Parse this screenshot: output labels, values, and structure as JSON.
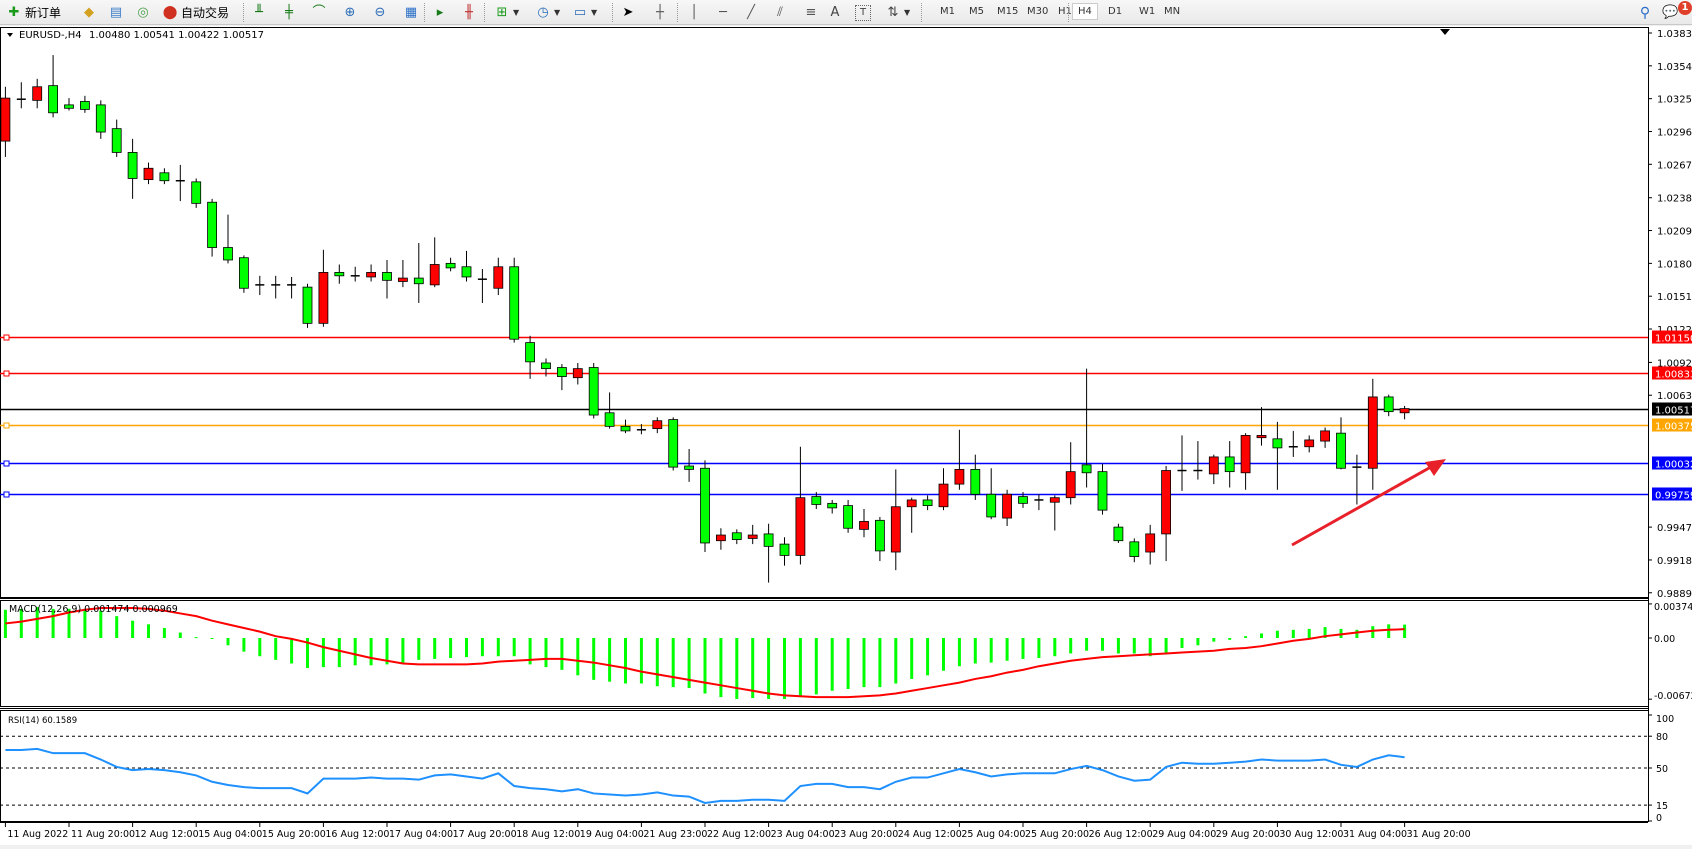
{
  "toolbar": {
    "new_order_label": "新订单",
    "auto_trading_label": "自动交易",
    "timeframes": [
      "M1",
      "M5",
      "M15",
      "M30",
      "H1",
      "H4",
      "D1",
      "W1",
      "MN"
    ],
    "active_timeframe": "H4",
    "notification_count": "1",
    "icons": [
      "new-order-icon",
      "market-watch-icon",
      "navigator-icon",
      "signals-icon",
      "auto-trading-icon",
      "bar-chart-icon",
      "candlestick-icon",
      "line-chart-icon",
      "zoom-in-icon",
      "zoom-out-icon",
      "tile-windows-icon",
      "chart-shift-icon",
      "autoscroll-icon",
      "new-chart-icon",
      "periods-icon",
      "templates-icon",
      "cursor-icon",
      "crosshair-icon",
      "vertical-line-icon",
      "horizontal-line-icon",
      "trendline-icon",
      "equidistant-channel-icon",
      "fibonacci-icon",
      "text-icon",
      "text-label-icon",
      "arrows-icon",
      "search-icon",
      "chat-icon"
    ]
  },
  "chart": {
    "symbol_label": "EURUSD-,H4",
    "ohlc_label": "1.00480 1.00541 1.00422 1.00517",
    "macd_label": "MACD(12,26,9) 0.001474 0.000969",
    "rsi_label": "RSI(14) 60.1589"
  },
  "chart_data": {
    "type": "candlestick",
    "symbol": "EURUSD-",
    "timeframe": "H4",
    "bull_color": "#ff0000",
    "bear_color": "#00ff00",
    "ylim": [
      0.9886,
      1.039
    ],
    "price_ticks": [
      "1.03835",
      "1.03545",
      "1.03255",
      "1.02965",
      "1.02675",
      "1.02380",
      "1.02090",
      "1.01800",
      "1.01510",
      "1.01220",
      "1.00925",
      "1.00635",
      "0.99470",
      "0.99180",
      "0.98890"
    ],
    "levels": [
      {
        "price": "1.01150",
        "color": "#ff0000",
        "text_color": "#ffffff"
      },
      {
        "price": "1.00833",
        "color": "#ff0000",
        "text_color": "#ffffff"
      },
      {
        "price": "1.00517",
        "color": "#000000",
        "text_color": "#ffffff"
      },
      {
        "price": "1.00375",
        "color": "#ffa500",
        "text_color": "#ffffff"
      },
      {
        "price": "1.00032",
        "color": "#0000ff",
        "text_color": "#ffffff"
      },
      {
        "price": "0.99759",
        "color": "#0000ff",
        "text_color": "#ffffff"
      }
    ],
    "time_labels": [
      "11 Aug 2022",
      "11 Aug 20:00",
      "12 Aug 12:00",
      "15 Aug 04:00",
      "15 Aug 20:00",
      "16 Aug 12:00",
      "17 Aug 04:00",
      "17 Aug 20:00",
      "18 Aug 12:00",
      "19 Aug 04:00",
      "21 Aug 23:00",
      "22 Aug 12:00",
      "23 Aug 04:00",
      "23 Aug 20:00",
      "24 Aug 12:00",
      "25 Aug 04:00",
      "25 Aug 20:00",
      "26 Aug 12:00",
      "29 Aug 04:00",
      "29 Aug 20:00",
      "30 Aug 12:00",
      "31 Aug 04:00",
      "31 Aug 20:00"
    ],
    "candles_ohlc": [
      [
        1.0288,
        1.0336,
        1.0274,
        1.0326
      ],
      [
        1.0325,
        1.034,
        1.0317,
        1.0324
      ],
      [
        1.0324,
        1.0343,
        1.0317,
        1.0336
      ],
      [
        1.0337,
        1.0364,
        1.0309,
        1.0313
      ],
      [
        1.032,
        1.0326,
        1.0315,
        1.0317
      ],
      [
        1.0323,
        1.0328,
        1.0313,
        1.0316
      ],
      [
        1.032,
        1.0324,
        1.029,
        1.0296
      ],
      [
        1.0299,
        1.0307,
        1.0274,
        1.0278
      ],
      [
        1.0278,
        1.029,
        1.0237,
        1.0255
      ],
      [
        1.0254,
        1.0269,
        1.025,
        1.0264
      ],
      [
        1.026,
        1.0264,
        1.025,
        1.0253
      ],
      [
        1.0253,
        1.0267,
        1.0235,
        1.0252
      ],
      [
        1.0252,
        1.0255,
        1.0229,
        1.0233
      ],
      [
        1.0234,
        1.0237,
        1.0186,
        1.0194
      ],
      [
        1.0194,
        1.0223,
        1.018,
        1.0183
      ],
      [
        1.0185,
        1.0187,
        1.0154,
        1.0158
      ],
      [
        1.0161,
        1.0169,
        1.0152,
        1.016
      ],
      [
        1.016,
        1.0169,
        1.0149,
        1.0161
      ],
      [
        1.0161,
        1.0168,
        1.0149,
        1.016
      ],
      [
        1.0159,
        1.0162,
        1.0123,
        1.0127
      ],
      [
        1.0127,
        1.0192,
        1.0124,
        1.0172
      ],
      [
        1.0172,
        1.0179,
        1.0162,
        1.0169
      ],
      [
        1.0169,
        1.0177,
        1.0164,
        1.0169
      ],
      [
        1.0168,
        1.0179,
        1.0164,
        1.0172
      ],
      [
        1.0172,
        1.0183,
        1.0149,
        1.0165
      ],
      [
        1.0164,
        1.0183,
        1.0159,
        1.0167
      ],
      [
        1.0167,
        1.0198,
        1.0145,
        1.0162
      ],
      [
        1.0161,
        1.0203,
        1.0159,
        1.0179
      ],
      [
        1.018,
        1.0185,
        1.0173,
        1.0176
      ],
      [
        1.0177,
        1.0191,
        1.0164,
        1.0168
      ],
      [
        1.0166,
        1.0175,
        1.0145,
        1.0166
      ],
      [
        1.0158,
        1.0185,
        1.0152,
        1.0177
      ],
      [
        1.0177,
        1.0185,
        1.011,
        1.0113
      ],
      [
        1.011,
        1.0116,
        1.0078,
        1.0093
      ],
      [
        1.0092,
        1.0096,
        1.008,
        1.0087
      ],
      [
        1.0088,
        1.0091,
        1.0068,
        1.008
      ],
      [
        1.0079,
        1.0092,
        1.0073,
        1.0087
      ],
      [
        1.0088,
        1.0092,
        1.0043,
        1.0046
      ],
      [
        1.0048,
        1.0066,
        1.0034,
        1.0036
      ],
      [
        1.0036,
        1.0042,
        1.003,
        1.0032
      ],
      [
        1.0033,
        1.0038,
        1.0029,
        1.0033
      ],
      [
        1.0034,
        1.0044,
        1.003,
        1.0041
      ],
      [
        1.0042,
        1.0044,
        0.9997,
        1.0
      ],
      [
        1.0001,
        1.0016,
        0.9987,
        0.9998
      ],
      [
        0.9999,
        1.0006,
        0.9925,
        0.9933
      ],
      [
        0.9935,
        0.9946,
        0.9927,
        0.994
      ],
      [
        0.9942,
        0.9945,
        0.9932,
        0.9936
      ],
      [
        0.9937,
        0.9949,
        0.9932,
        0.994
      ],
      [
        0.9941,
        0.995,
        0.9898,
        0.993
      ],
      [
        0.9932,
        0.9938,
        0.9913,
        0.9922
      ],
      [
        0.9922,
        1.0018,
        0.9914,
        0.9973
      ],
      [
        0.9974,
        0.9978,
        0.9963,
        0.9967
      ],
      [
        0.9968,
        0.9971,
        0.9959,
        0.9964
      ],
      [
        0.9966,
        0.9971,
        0.9942,
        0.9946
      ],
      [
        0.9945,
        0.9963,
        0.9938,
        0.9952
      ],
      [
        0.9953,
        0.9956,
        0.9917,
        0.9926
      ],
      [
        0.9925,
        0.9998,
        0.9909,
        0.9965
      ],
      [
        0.9965,
        0.9973,
        0.9942,
        0.9971
      ],
      [
        0.9971,
        0.9975,
        0.9962,
        0.9966
      ],
      [
        0.9965,
        0.9999,
        0.9962,
        0.9985
      ],
      [
        0.9985,
        1.0033,
        0.998,
        0.9998
      ],
      [
        0.9998,
        1.0011,
        0.9971,
        0.9976
      ],
      [
        0.9976,
        0.9999,
        0.9954,
        0.9956
      ],
      [
        0.9955,
        0.998,
        0.9948,
        0.9976
      ],
      [
        0.9974,
        0.9978,
        0.9964,
        0.9968
      ],
      [
        0.9971,
        0.9976,
        0.9962,
        0.997
      ],
      [
        0.9969,
        0.9975,
        0.9944,
        0.9973
      ],
      [
        0.9973,
        1.0022,
        0.9967,
        0.9996
      ],
      [
        1.0002,
        1.0087,
        0.9982,
        0.9995
      ],
      [
        0.9996,
        1.0003,
        0.9958,
        0.9962
      ],
      [
        0.9947,
        0.995,
        0.9933,
        0.9935
      ],
      [
        0.9934,
        0.9937,
        0.9916,
        0.9921
      ],
      [
        0.9925,
        0.9949,
        0.9914,
        0.9941
      ],
      [
        0.9941,
        1.0001,
        0.9917,
        0.9997
      ],
      [
        0.9996,
        1.0028,
        0.9979,
        0.9997
      ],
      [
        0.9997,
        1.0023,
        0.9989,
        0.9996
      ],
      [
        0.9994,
        1.0011,
        0.9985,
        1.0009
      ],
      [
        1.0009,
        1.0023,
        0.9982,
        0.9996
      ],
      [
        0.9995,
        1.003,
        0.998,
        1.0028
      ],
      [
        1.0026,
        1.0053,
        1.0019,
        1.0028
      ],
      [
        1.0025,
        1.004,
        0.998,
        1.0017
      ],
      [
        1.0018,
        1.0032,
        1.0009,
        1.0018
      ],
      [
        1.0018,
        1.0028,
        1.0013,
        1.0024
      ],
      [
        1.0023,
        1.0035,
        1.0017,
        1.0032
      ],
      [
        1.003,
        1.0044,
        0.9998,
        0.9999
      ],
      [
        1.0,
        1.0011,
        0.9967,
        0.9999
      ],
      [
        0.9999,
        1.0078,
        0.998,
        1.0062
      ],
      [
        1.0062,
        1.0064,
        1.0045,
        1.0049
      ],
      [
        1.0048,
        1.00541,
        1.00422,
        1.00517
      ]
    ],
    "macd": {
      "params": "12,26,9",
      "axis_ticks": [
        "0.003744",
        "0.00",
        "-0.006723"
      ],
      "histogram_color": "#00ff00",
      "signal_color": "#ff0000",
      "histogram": [
        0.0031,
        0.0032,
        0.0034,
        0.0032,
        0.0032,
        0.0032,
        0.003,
        0.0024,
        0.0019,
        0.0015,
        0.0011,
        0.0006,
        0.0001,
        0.0,
        -0.0008,
        -0.0015,
        -0.002,
        -0.0024,
        -0.0028,
        -0.0033,
        -0.0032,
        -0.0032,
        -0.003,
        -0.003,
        -0.0029,
        -0.0028,
        -0.0024,
        -0.0023,
        -0.0022,
        -0.0021,
        -0.002,
        -0.002,
        -0.002,
        -0.0029,
        -0.0032,
        -0.0035,
        -0.0041,
        -0.0046,
        -0.0048,
        -0.005,
        -0.005,
        -0.0053,
        -0.0054,
        -0.0055,
        -0.0061,
        -0.0065,
        -0.0067,
        -0.0066,
        -0.0067,
        -0.0067,
        -0.0065,
        -0.0062,
        -0.0058,
        -0.0056,
        -0.0054,
        -0.0054,
        -0.005,
        -0.0045,
        -0.0041,
        -0.0036,
        -0.0031,
        -0.0028,
        -0.0027,
        -0.0025,
        -0.0023,
        -0.0022,
        -0.002,
        -0.0017,
        -0.0014,
        -0.0014,
        -0.0017,
        -0.0017,
        -0.002,
        -0.0016,
        -0.0011,
        -0.0008,
        -0.0004,
        -0.0002,
        0.0002,
        0.0005,
        0.0008,
        0.0009,
        0.001,
        0.0012,
        0.001,
        0.0009,
        0.0013,
        0.0015,
        0.001474
      ],
      "signal": [
        0.0016,
        0.0018,
        0.0021,
        0.0024,
        0.0028,
        0.0031,
        0.0033,
        0.0033,
        0.0033,
        0.0032,
        0.003,
        0.0027,
        0.0024,
        0.0019,
        0.0015,
        0.0011,
        0.0007,
        0.0002,
        -0.0001,
        -0.0005,
        -0.001,
        -0.0014,
        -0.0018,
        -0.0022,
        -0.0025,
        -0.0028,
        -0.0029,
        -0.0029,
        -0.0029,
        -0.0029,
        -0.0028,
        -0.0026,
        -0.0025,
        -0.0024,
        -0.0023,
        -0.0023,
        -0.0025,
        -0.0027,
        -0.003,
        -0.0033,
        -0.0037,
        -0.004,
        -0.0043,
        -0.0046,
        -0.0049,
        -0.0052,
        -0.0055,
        -0.0058,
        -0.0061,
        -0.0063,
        -0.0064,
        -0.0065,
        -0.0065,
        -0.0065,
        -0.0064,
        -0.0063,
        -0.0061,
        -0.0058,
        -0.0055,
        -0.0052,
        -0.0049,
        -0.0045,
        -0.0042,
        -0.0038,
        -0.0035,
        -0.0031,
        -0.0028,
        -0.0025,
        -0.0023,
        -0.0021,
        -0.002,
        -0.0019,
        -0.0018,
        -0.0017,
        -0.0016,
        -0.0015,
        -0.0014,
        -0.0012,
        -0.0011,
        -0.0009,
        -0.0006,
        -0.0003,
        -0.0001,
        0.0002,
        0.0004,
        0.0006,
        0.0008,
        0.0009,
        0.000969
      ]
    },
    "rsi": {
      "period": 14,
      "color": "#1e90ff",
      "axis_ticks": [
        "100",
        "80",
        "50",
        "15",
        "0"
      ],
      "levels": [
        80,
        50,
        15
      ],
      "values": [
        67,
        67,
        68,
        64,
        64,
        64,
        58,
        51,
        48,
        49,
        48,
        46,
        43,
        37,
        34,
        32,
        31,
        31,
        31,
        26,
        40,
        40,
        40,
        41,
        40,
        40,
        39,
        43,
        44,
        42,
        40,
        45,
        33,
        31,
        30,
        28,
        30,
        26,
        25,
        24,
        25,
        27,
        24,
        23,
        17,
        19,
        19,
        20,
        20,
        19,
        33,
        35,
        35,
        32,
        32,
        30,
        37,
        41,
        41,
        45,
        49,
        46,
        42,
        44,
        45,
        45,
        45,
        49,
        52,
        48,
        42,
        38,
        39,
        51,
        55,
        54,
        54,
        55,
        56,
        58,
        57,
        57,
        57,
        58,
        53,
        51,
        58,
        62,
        60.1589
      ]
    },
    "annotation_arrow_color": "#e8202a"
  }
}
